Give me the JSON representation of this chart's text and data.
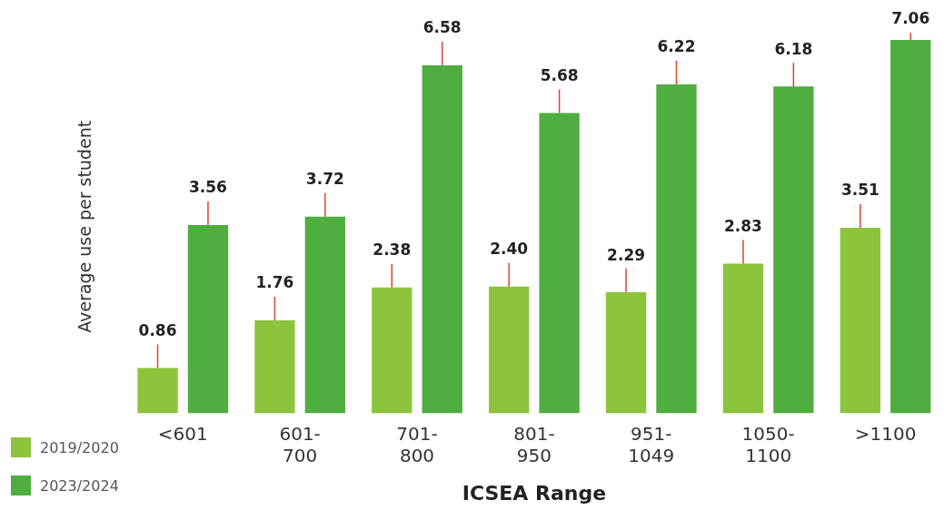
{
  "chart_data": {
    "type": "bar",
    "xlabel": "ICSEA Range",
    "ylabel": "Average use per student",
    "categories": [
      "<601",
      "601-700",
      "701-800",
      "801-950",
      "951-1049",
      "1050-1100",
      ">1100"
    ],
    "series": [
      {
        "name": "2019/2020",
        "color": "#8cc43c",
        "values": [
          0.86,
          1.76,
          2.38,
          2.4,
          2.29,
          2.83,
          3.51
        ],
        "value_labels": [
          "0.86",
          "1.76",
          "2.38",
          "2.40",
          "2.29",
          "2.83",
          "3.51"
        ]
      },
      {
        "name": "2023/2024",
        "color": "#50ad40",
        "values": [
          3.56,
          3.72,
          6.58,
          5.68,
          6.22,
          6.18,
          7.06
        ],
        "value_labels": [
          "3.56",
          "3.72",
          "6.58",
          "5.68",
          "6.22",
          "6.18",
          "7.06"
        ]
      }
    ],
    "grid": false,
    "legend": "bottom left"
  }
}
